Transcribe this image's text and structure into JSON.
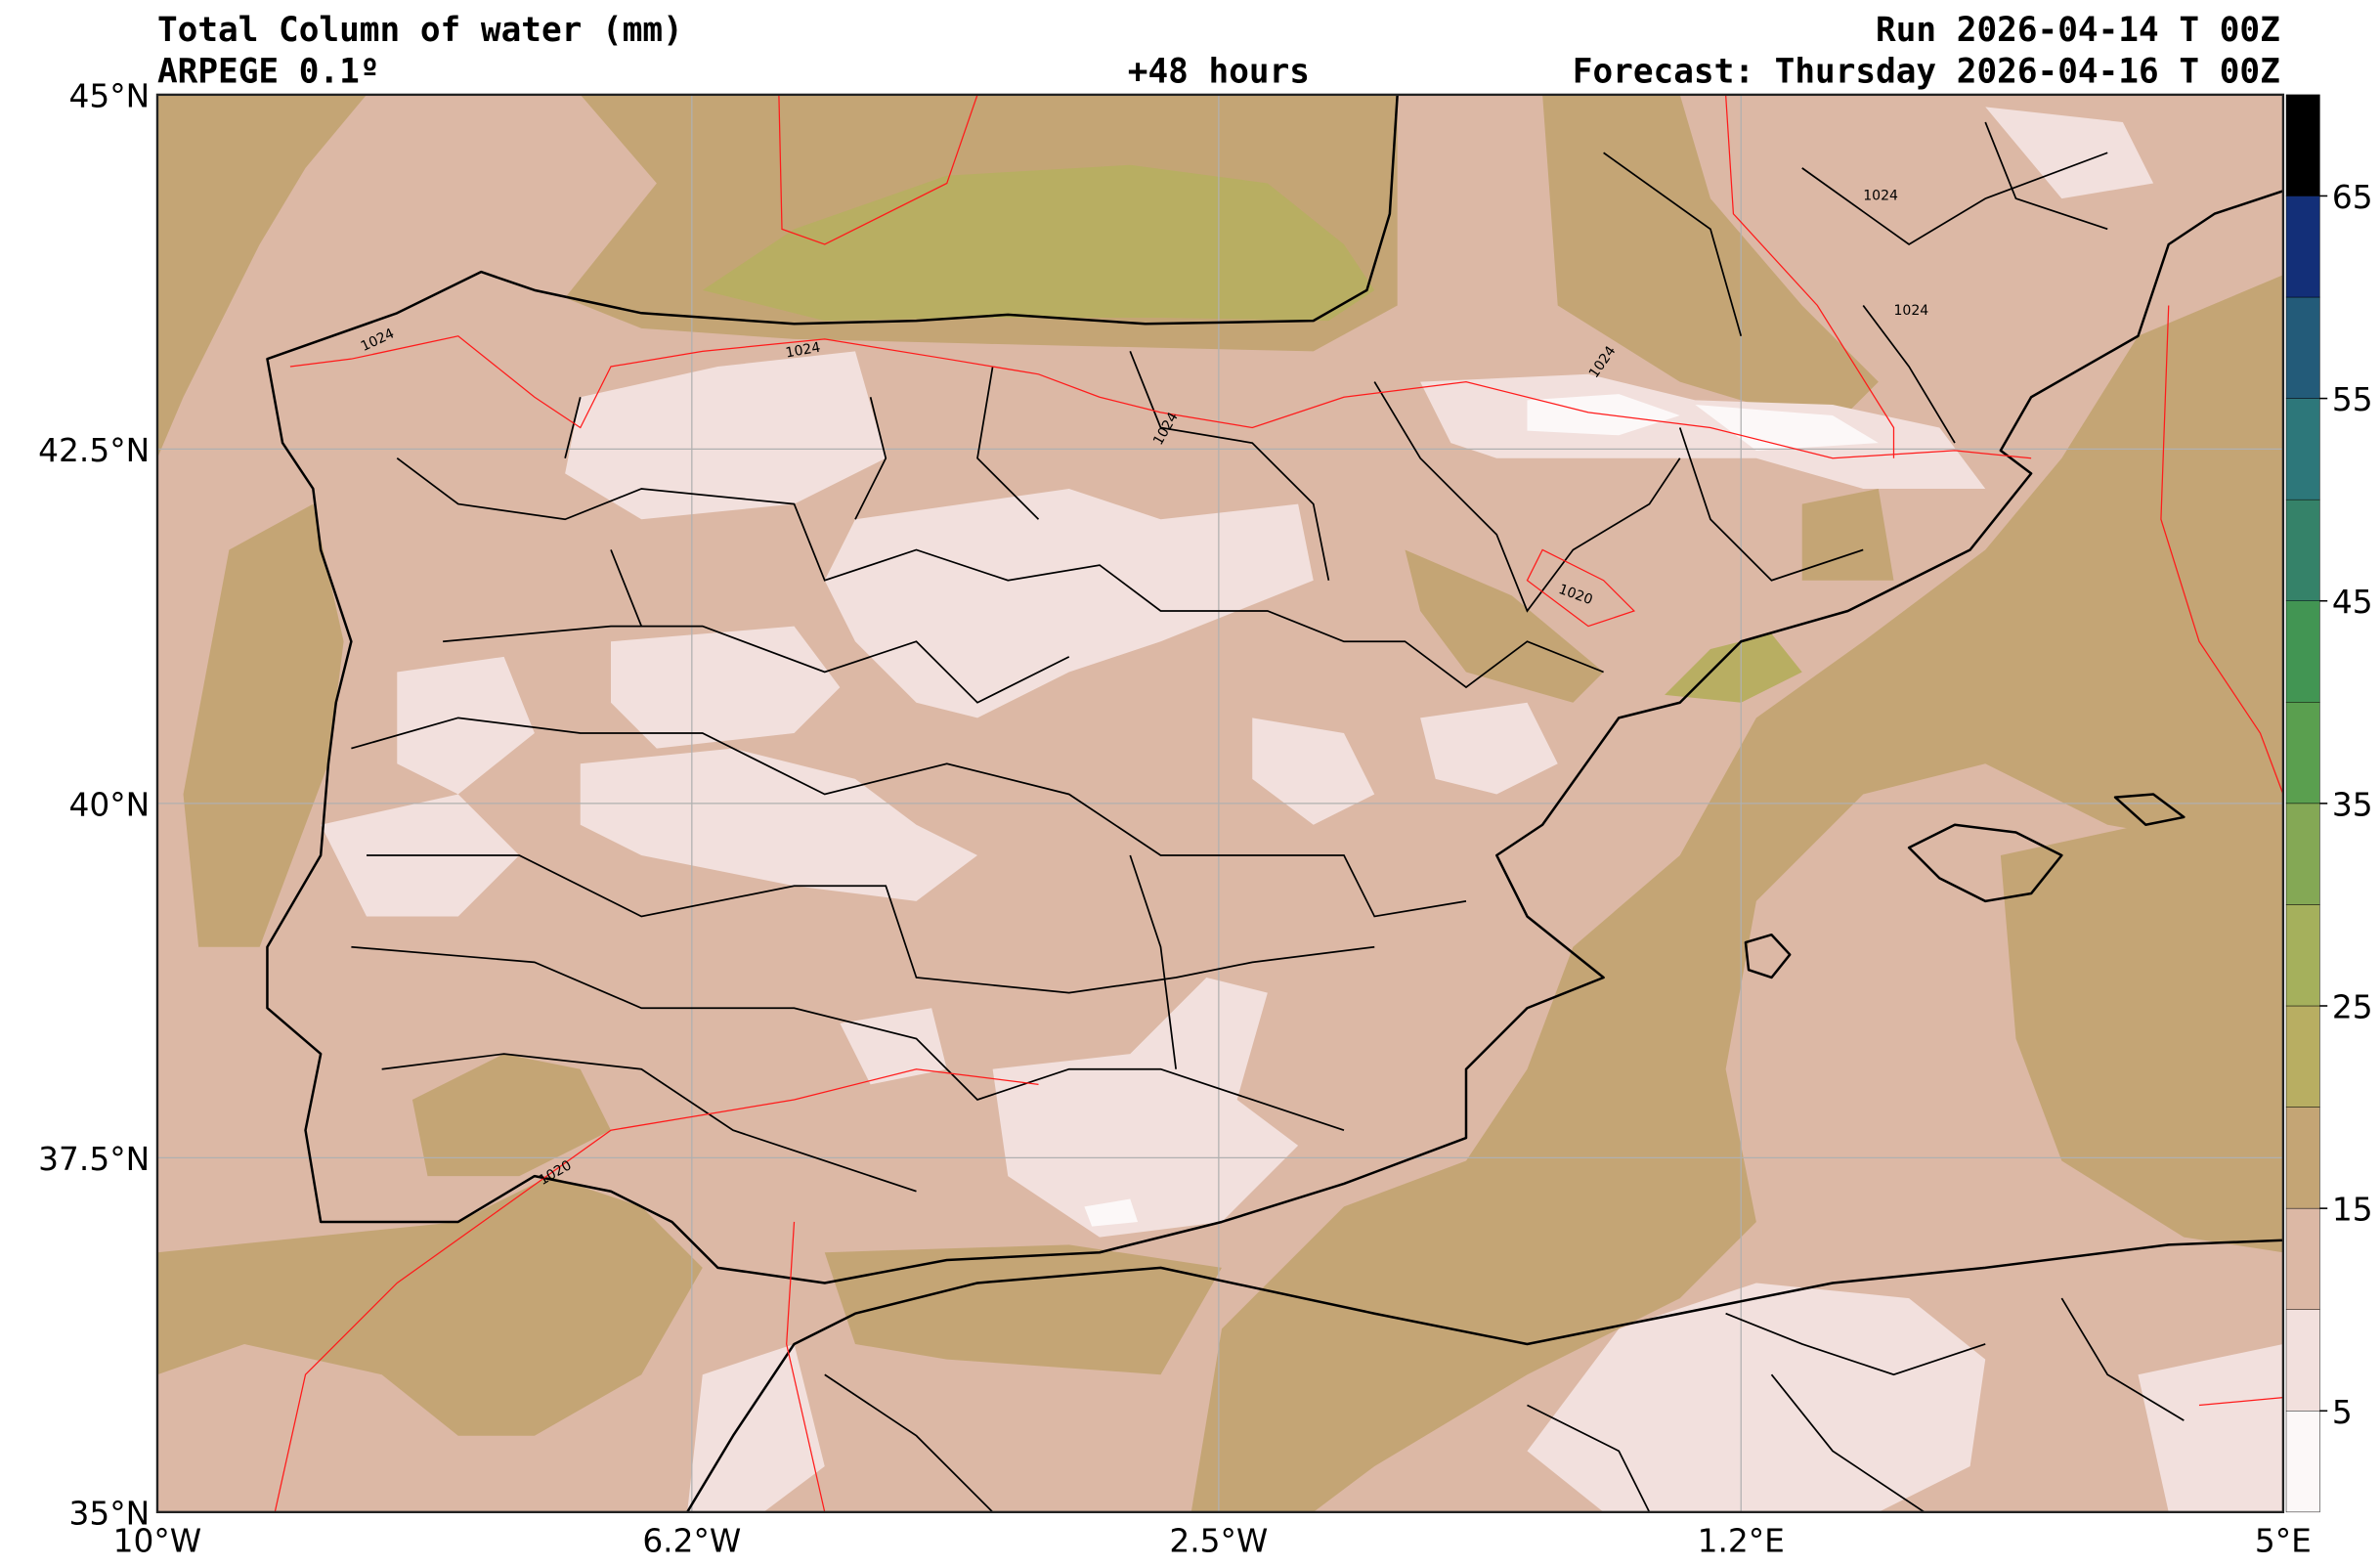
{
  "header": {
    "title": "Total Column of water (mm)",
    "model": "ARPEGE 0.1º",
    "lead": "+48 hours",
    "run": "Run 2026-04-14 T 00Z",
    "forecast": "Forecast: Thursday 2026-04-16 T 00Z"
  },
  "axes": {
    "lat_labels": [
      "45°N",
      "42.5°N",
      "40°N",
      "37.5°N",
      "35°N"
    ],
    "lon_labels": [
      "10°W",
      "6.2°W",
      "2.5°W",
      "1.2°E",
      "5°E"
    ]
  },
  "isobars": {
    "labels": [
      "1024",
      "1024",
      "1024",
      "1024",
      "1024",
      "1020",
      "1020",
      "1024"
    ]
  },
  "colorbar": {
    "levels": [
      0,
      5,
      10,
      15,
      20,
      25,
      30,
      35,
      40,
      45,
      50,
      55,
      60,
      65,
      70
    ],
    "colors": [
      "#fcf8f8",
      "#f2e0dd",
      "#dcb8a5",
      "#c4a575",
      "#b8ae62",
      "#a5b05c",
      "#84a855",
      "#5a9f4f",
      "#429553",
      "#358269",
      "#2d777a",
      "#235b79",
      "#132f78",
      "#000000"
    ],
    "tick_labels": [
      "5",
      "15",
      "25",
      "35",
      "45",
      "55",
      "65"
    ]
  }
}
